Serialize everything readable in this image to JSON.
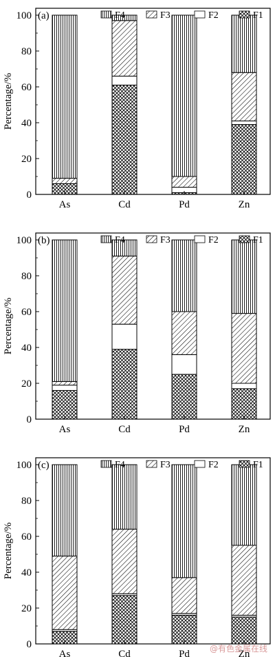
{
  "chart_data": [
    {
      "type": "bar",
      "stacked": true,
      "panel_label": "(a)",
      "ylabel": "Percentage/%",
      "ylim": [
        0,
        100
      ],
      "yticks": [
        0,
        20,
        40,
        60,
        80,
        100
      ],
      "categories": [
        "As",
        "Cd",
        "Pd",
        "Zn"
      ],
      "series": [
        {
          "name": "F1",
          "pattern": "crosshatch",
          "values": [
            6,
            61,
            1,
            39
          ]
        },
        {
          "name": "F2",
          "pattern": "blank",
          "values": [
            0,
            5,
            3,
            2
          ]
        },
        {
          "name": "F3",
          "pattern": "diagonal",
          "values": [
            3,
            31,
            6,
            27
          ]
        },
        {
          "name": "F4",
          "pattern": "vertical",
          "values": [
            91,
            3,
            90,
            32
          ]
        }
      ],
      "legend": [
        "F4",
        "F3",
        "F2",
        "F1"
      ],
      "legend_position": "top-right"
    },
    {
      "type": "bar",
      "stacked": true,
      "panel_label": "(b)",
      "ylabel": "Percentage/%",
      "ylim": [
        0,
        100
      ],
      "yticks": [
        0,
        20,
        40,
        60,
        80,
        100
      ],
      "categories": [
        "As",
        "Cd",
        "Pd",
        "Zn"
      ],
      "series": [
        {
          "name": "F1",
          "pattern": "crosshatch",
          "values": [
            16,
            39,
            25,
            17
          ]
        },
        {
          "name": "F2",
          "pattern": "blank",
          "values": [
            3,
            14,
            11,
            3
          ]
        },
        {
          "name": "F3",
          "pattern": "diagonal",
          "values": [
            2,
            38,
            24,
            39
          ]
        },
        {
          "name": "F4",
          "pattern": "vertical",
          "values": [
            79,
            9,
            40,
            41
          ]
        }
      ],
      "legend": [
        "F4",
        "F3",
        "F2",
        "F1"
      ],
      "legend_position": "top-right"
    },
    {
      "type": "bar",
      "stacked": true,
      "panel_label": "(c)",
      "ylabel": "Percentage/%",
      "ylim": [
        0,
        100
      ],
      "yticks": [
        0,
        20,
        40,
        60,
        80,
        100
      ],
      "categories": [
        "As",
        "Cd",
        "Pd",
        "Zn"
      ],
      "series": [
        {
          "name": "F1",
          "pattern": "crosshatch",
          "values": [
            7,
            27,
            16,
            15
          ]
        },
        {
          "name": "F2",
          "pattern": "blank",
          "values": [
            1,
            1,
            1,
            1
          ]
        },
        {
          "name": "F3",
          "pattern": "diagonal",
          "values": [
            41,
            36,
            20,
            39
          ]
        },
        {
          "name": "F4",
          "pattern": "vertical",
          "values": [
            51,
            36,
            63,
            45
          ]
        }
      ],
      "legend": [
        "F4",
        "F3",
        "F2",
        "F1"
      ],
      "legend_position": "top-right"
    }
  ],
  "watermark": "@有色金属在线",
  "colors": {
    "ink": "#000000",
    "background": "#ffffff",
    "watermark": "#d99a9a"
  }
}
